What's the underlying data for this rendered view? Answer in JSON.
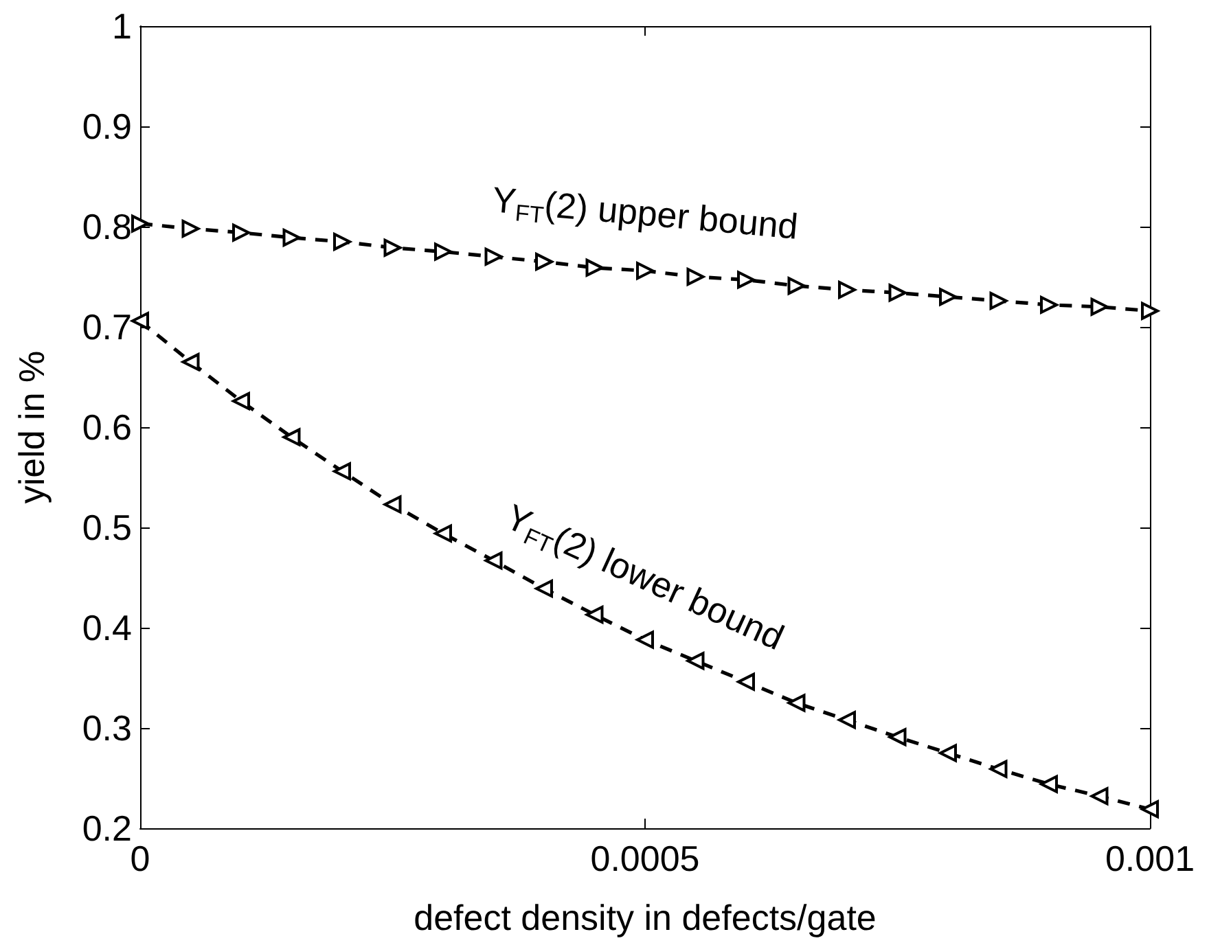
{
  "chart_data": {
    "type": "line",
    "xlabel": "defect density in defects/gate",
    "ylabel": "yield in %",
    "x": [
      0,
      5e-05,
      0.0001,
      0.00015,
      0.0002,
      0.00025,
      0.0003,
      0.00035,
      0.0004,
      0.00045,
      0.0005,
      0.00055,
      0.0006,
      0.00065,
      0.0007,
      0.00075,
      0.0008,
      0.00085,
      0.0009,
      0.00095,
      0.001
    ],
    "xlim": [
      0,
      0.001
    ],
    "xticks": [
      0,
      0.0005,
      0.001
    ],
    "ylim": [
      0.2,
      1
    ],
    "yticks": [
      0.2,
      0.3,
      0.4,
      0.5,
      0.6,
      0.7,
      0.8,
      0.9,
      1
    ],
    "marker": "triangle",
    "line_style": "dashed",
    "series": [
      {
        "name": "Y$_{FT}$(2) upper bound",
        "color": "#000000",
        "values": [
          0.803,
          0.798,
          0.794,
          0.789,
          0.785,
          0.779,
          0.775,
          0.77,
          0.765,
          0.759,
          0.756,
          0.75,
          0.747,
          0.741,
          0.737,
          0.734,
          0.73,
          0.726,
          0.722,
          0.72,
          0.716
        ]
      },
      {
        "name": "Y$_{FT}$(2) lower bound",
        "color": "#000000",
        "values": [
          0.706,
          0.665,
          0.626,
          0.59,
          0.556,
          0.523,
          0.494,
          0.467,
          0.439,
          0.413,
          0.388,
          0.367,
          0.346,
          0.325,
          0.308,
          0.291,
          0.275,
          0.259,
          0.244,
          0.232,
          0.219
        ]
      }
    ]
  }
}
